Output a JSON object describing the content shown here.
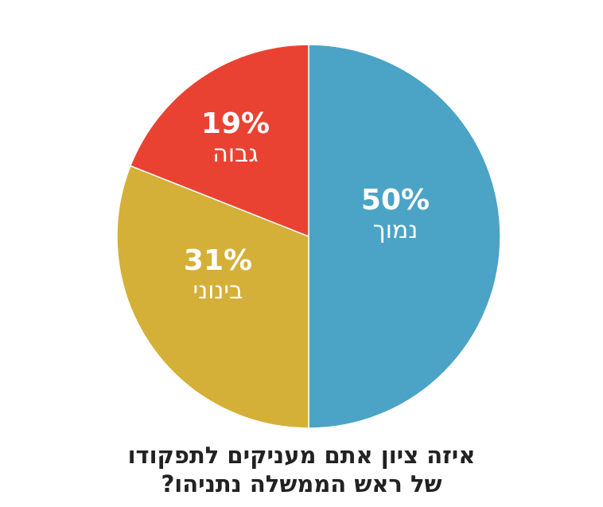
{
  "chart_data": {
    "type": "pie",
    "title": "איזה ציון אתם מעניקים לתפקודו של ראש הממשלה נתניהו?",
    "categories": [
      "נמוך",
      "בינוני",
      "גבוה"
    ],
    "values": [
      50,
      31,
      19
    ],
    "labels": [
      "50%",
      "31%",
      "19%"
    ],
    "colors": [
      "#4ba3c6",
      "#d4b038",
      "#ea4232"
    ],
    "start_angle_deg": 0,
    "direction": "clockwise",
    "legend": "none"
  },
  "slices": [
    {
      "pct": "50%",
      "label": "נמוך",
      "color": "#4ba3c6"
    },
    {
      "pct": "31%",
      "label": "בינוני",
      "color": "#d4b038"
    },
    {
      "pct": "19%",
      "label": "גבוה",
      "color": "#ea4232"
    }
  ],
  "caption": {
    "line1": "איזה ציון אתם מעניקים לתפקודו",
    "line2": "של ראש הממשלה נתניהו?"
  }
}
